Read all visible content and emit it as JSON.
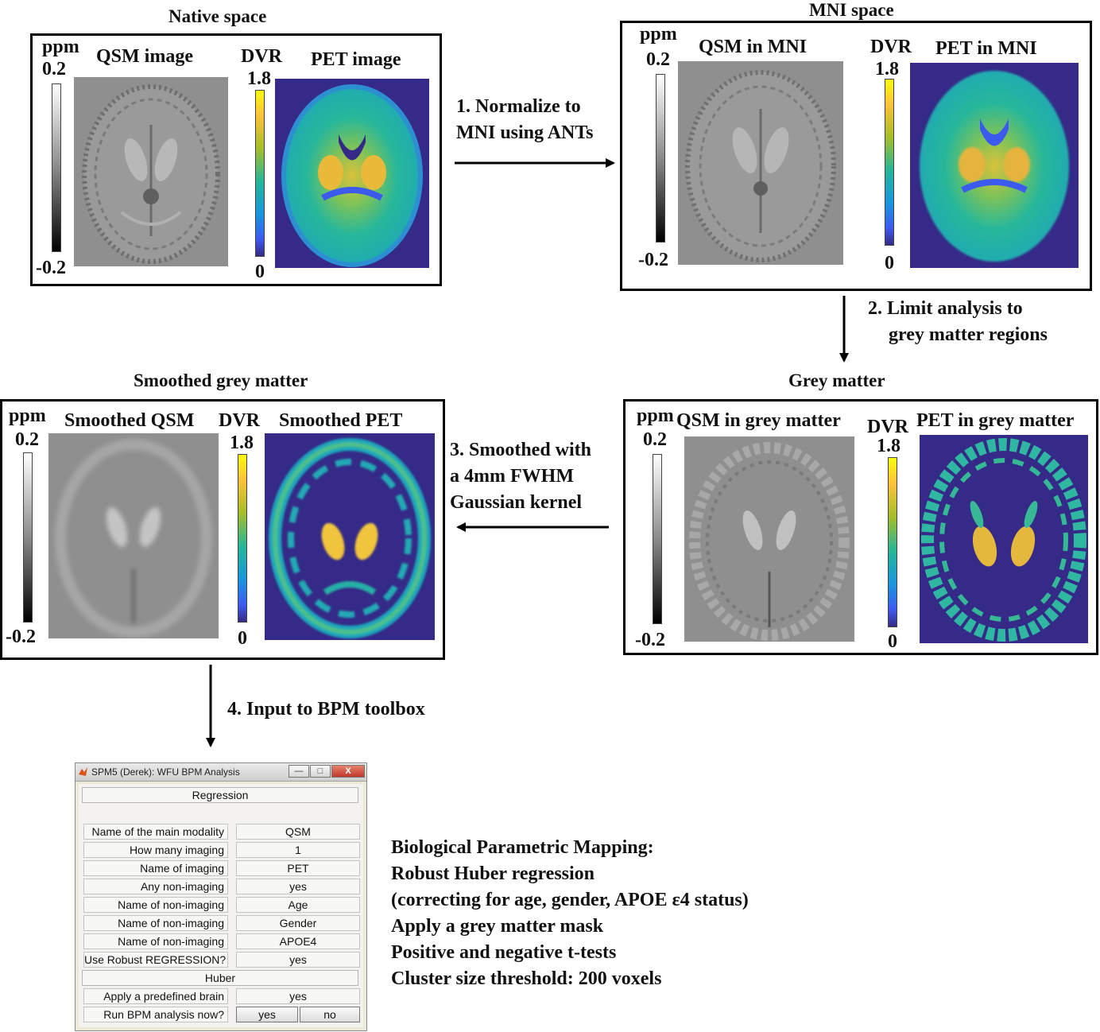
{
  "stages": {
    "native": {
      "title": "Native space",
      "qsm_label": "QSM image",
      "pet_label": "PET image"
    },
    "mni": {
      "title": "MNI space",
      "qsm_label": "QSM in MNI",
      "pet_label": "PET in MNI"
    },
    "grey": {
      "title": "Grey matter",
      "qsm_label": "QSM in grey matter",
      "pet_label": "PET in grey matter"
    },
    "smoothed": {
      "title": "Smoothed grey matter",
      "qsm_label": "Smoothed QSM",
      "pet_label": "Smoothed PET"
    }
  },
  "colorbars": {
    "qsm": {
      "unit": "ppm",
      "max": "0.2",
      "min": "-0.2"
    },
    "pet": {
      "unit": "DVR",
      "max": "1.8",
      "min": "0"
    }
  },
  "steps": {
    "step1": {
      "line1": "1. Normalize to",
      "line2": "MNI using ANTs"
    },
    "step2": {
      "line1": "2. Limit analysis to",
      "line2": "grey matter regions"
    },
    "step3": {
      "line1": "3. Smoothed with",
      "line2": "a 4mm FWHM",
      "line3": "Gaussian kernel"
    },
    "step4": {
      "line1": "4. Input to BPM toolbox"
    }
  },
  "dialog": {
    "title": "SPM5 (Derek): WFU BPM Analysis",
    "header": "Regression",
    "rows": [
      {
        "label": "Name of the main modality",
        "value": "QSM"
      },
      {
        "label": "How many imaging",
        "value": "1"
      },
      {
        "label": "Name of imaging",
        "value": "PET"
      },
      {
        "label": "Any non-imaging",
        "value": "yes"
      },
      {
        "label": "Name of non-imaging",
        "value": "Age"
      },
      {
        "label": "Name of non-imaging",
        "value": "Gender"
      },
      {
        "label": "Name of non-imaging",
        "value": "APOE4"
      },
      {
        "label": "Use Robust REGRESSION?",
        "value": "yes"
      }
    ],
    "section2": "Huber",
    "mask_row": {
      "label": "Apply a predefined brain",
      "value": "yes"
    },
    "run_row": {
      "label": "Run BPM analysis now?",
      "yes": "yes",
      "no": "no"
    },
    "window_buttons": {
      "minimize": "—",
      "maximize": "□",
      "close": "X"
    }
  },
  "bpm_summary": [
    "Biological Parametric Mapping:",
    "Robust Huber regression",
    "(correcting for age, gender, APOE ε4 status)",
    "Apply a grey matter mask",
    "Positive and negative t-tests",
    "Cluster size threshold: 200 voxels"
  ],
  "colors": {
    "pet_background": "#352a87",
    "pet_mid": "#2fb7a2",
    "pet_high": "#f2c14a",
    "qsm_background": "#8f8f8f"
  }
}
